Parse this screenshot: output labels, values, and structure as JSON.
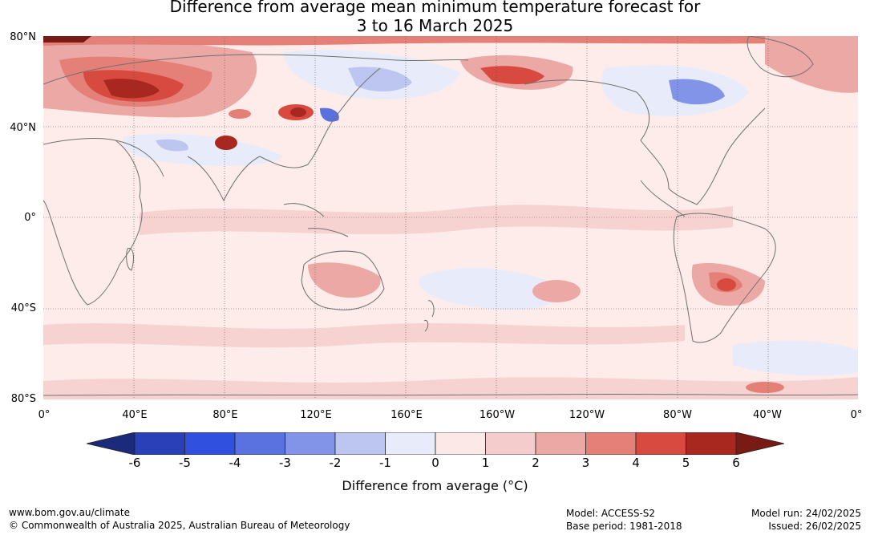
{
  "title": {
    "line1": "Difference from average mean minimum temperature forecast for",
    "line2": "3 to 16 March 2025"
  },
  "map": {
    "lat_ticks": [
      "80°N",
      "40°N",
      "0°",
      "40°S",
      "80°S"
    ],
    "lon_ticks": [
      "0°",
      "40°E",
      "80°E",
      "120°E",
      "160°E",
      "160°W",
      "120°W",
      "80°W",
      "40°W",
      "0°"
    ]
  },
  "colorbar": {
    "tick_labels": [
      "-6",
      "-5",
      "-4",
      "-3",
      "-2",
      "-1",
      "0",
      "1",
      "2",
      "3",
      "4",
      "5",
      "6"
    ],
    "colors": [
      "#1c2a7c",
      "#2a40b8",
      "#3050e0",
      "#5a72e0",
      "#8294e8",
      "#bcc6f0",
      "#e8ecfa",
      "#fce8e6",
      "#f4cccc",
      "#eca8a4",
      "#e48078",
      "#d84a40",
      "#a82820",
      "#7a1a14"
    ],
    "label": "Difference from average (°C)"
  },
  "footer": {
    "site": "www.bom.gov.au/climate",
    "copyright": "© Commonwealth of Australia 2025, Australian Bureau of Meteorology",
    "model": "Model: ACCESS-S2",
    "base_period": "Base period: 1981-2018",
    "model_run": "Model run: 24/02/2025",
    "issued": "Issued: 26/02/2025"
  }
}
